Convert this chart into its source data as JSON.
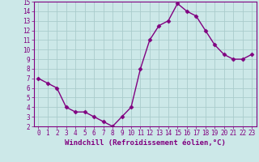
{
  "x": [
    0,
    1,
    2,
    3,
    4,
    5,
    6,
    7,
    8,
    9,
    10,
    11,
    12,
    13,
    14,
    15,
    16,
    17,
    18,
    19,
    20,
    21,
    22,
    23
  ],
  "y": [
    7.0,
    6.5,
    6.0,
    4.0,
    3.5,
    3.5,
    3.0,
    2.5,
    2.0,
    3.0,
    4.0,
    8.0,
    11.0,
    12.5,
    13.0,
    14.8,
    14.0,
    13.5,
    12.0,
    10.5,
    9.5,
    9.0,
    9.0,
    9.5
  ],
  "xlabel": "Windchill (Refroidissement éolien,°C)",
  "ylim": [
    2,
    15
  ],
  "xlim": [
    -0.5,
    23.5
  ],
  "yticks": [
    2,
    3,
    4,
    5,
    6,
    7,
    8,
    9,
    10,
    11,
    12,
    13,
    14,
    15
  ],
  "xticks": [
    0,
    1,
    2,
    3,
    4,
    5,
    6,
    7,
    8,
    9,
    10,
    11,
    12,
    13,
    14,
    15,
    16,
    17,
    18,
    19,
    20,
    21,
    22,
    23
  ],
  "line_color": "#800080",
  "marker": "D",
  "marker_size": 2.5,
  "bg_color": "#cce8e8",
  "grid_color": "#aacccc",
  "axis_label_color": "#800080",
  "tick_label_color": "#800080",
  "xlabel_fontsize": 6.5,
  "tick_fontsize": 5.5,
  "linewidth": 1.0
}
